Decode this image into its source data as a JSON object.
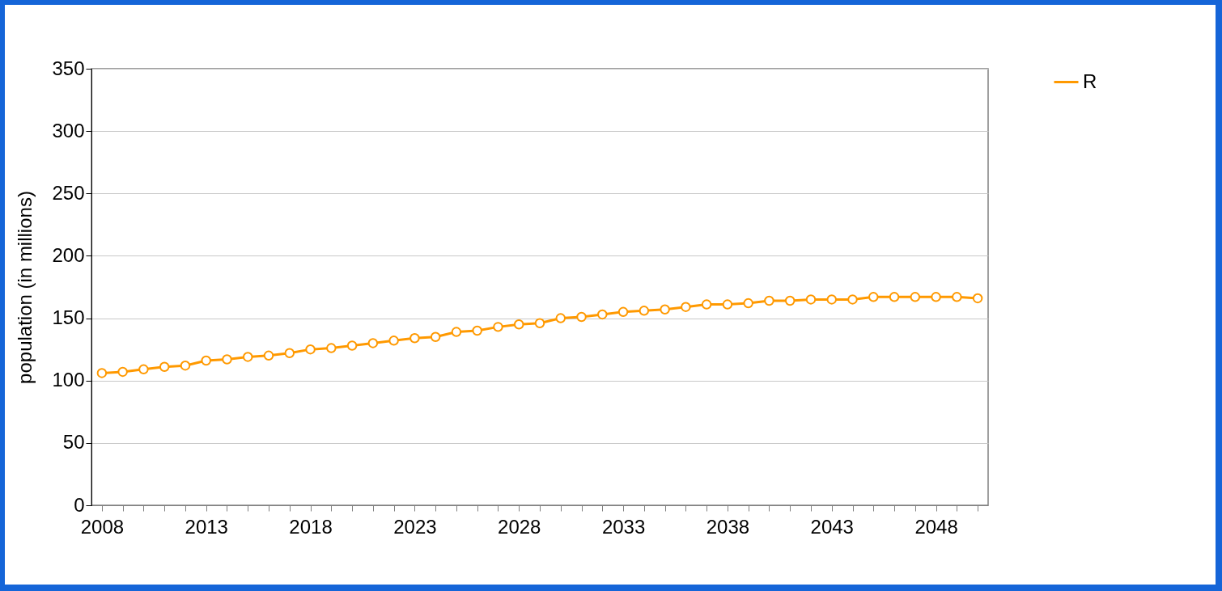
{
  "chart_data": {
    "type": "line",
    "ylabel": "population (in millions)",
    "x": [
      2008,
      2009,
      2010,
      2011,
      2012,
      2013,
      2014,
      2015,
      2016,
      2017,
      2018,
      2019,
      2020,
      2021,
      2022,
      2023,
      2024,
      2025,
      2026,
      2027,
      2028,
      2029,
      2030,
      2031,
      2032,
      2033,
      2034,
      2035,
      2036,
      2037,
      2038,
      2039,
      2040,
      2041,
      2042,
      2043,
      2044,
      2045,
      2046,
      2047,
      2048,
      2049,
      2050
    ],
    "series": [
      {
        "name": "R",
        "color": "#ff9900",
        "values": [
          106,
          107,
          109,
          111,
          112,
          116,
          117,
          119,
          120,
          122,
          125,
          126,
          128,
          130,
          132,
          134,
          135,
          139,
          140,
          143,
          145,
          146,
          150,
          151,
          153,
          155,
          156,
          157,
          159,
          161,
          161,
          162,
          164,
          164,
          165,
          165,
          165,
          167,
          167,
          167,
          167,
          167,
          166
        ]
      }
    ],
    "xlim": [
      2007.5,
      2050.5
    ],
    "xticks": [
      2008,
      {
        "value": 2009,
        "label": null
      },
      {
        "value": 2010,
        "label": null
      },
      {
        "value": 2011,
        "label": null
      },
      {
        "value": 2012,
        "label": null
      },
      2013,
      {
        "value": 2014,
        "label": null
      },
      {
        "value": 2015,
        "label": null
      },
      {
        "value": 2016,
        "label": null
      },
      {
        "value": 2017,
        "label": null
      },
      2018,
      {
        "value": 2019,
        "label": null
      },
      {
        "value": 2020,
        "label": null
      },
      {
        "value": 2021,
        "label": null
      },
      {
        "value": 2022,
        "label": null
      },
      2023,
      {
        "value": 2024,
        "label": null
      },
      {
        "value": 2025,
        "label": null
      },
      {
        "value": 2026,
        "label": null
      },
      {
        "value": 2027,
        "label": null
      },
      2028,
      {
        "value": 2029,
        "label": null
      },
      {
        "value": 2030,
        "label": null
      },
      {
        "value": 2031,
        "label": null
      },
      {
        "value": 2032,
        "label": null
      },
      2033,
      {
        "value": 2034,
        "label": null
      },
      {
        "value": 2035,
        "label": null
      },
      {
        "value": 2036,
        "label": null
      },
      {
        "value": 2037,
        "label": null
      },
      2038,
      {
        "value": 2039,
        "label": null
      },
      {
        "value": 2040,
        "label": null
      },
      {
        "value": 2041,
        "label": null
      },
      {
        "value": 2042,
        "label": null
      },
      2043,
      {
        "value": 2044,
        "label": null
      },
      {
        "value": 2045,
        "label": null
      },
      {
        "value": 2046,
        "label": null
      },
      {
        "value": 2047,
        "label": null
      },
      2048,
      {
        "value": 2049,
        "label": null
      },
      {
        "value": 2050,
        "label": null
      }
    ],
    "ylim": [
      0,
      350
    ],
    "yticks": [
      0,
      50,
      100,
      150,
      200,
      250,
      300,
      350
    ],
    "grid": "y",
    "legend": "right",
    "marker": "circle",
    "line_style": "solid"
  }
}
